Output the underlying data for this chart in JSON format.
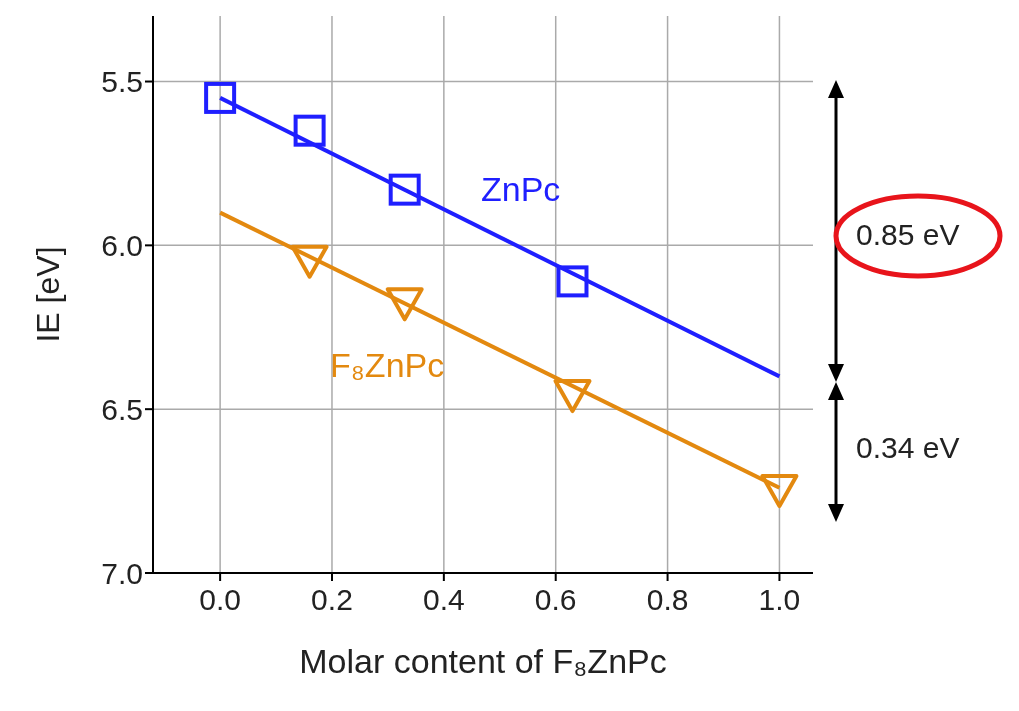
{
  "chart_data": {
    "type": "scatter",
    "xlabel": "Molar content of F₈ZnPc",
    "ylabel": "IE [eV]",
    "xlim": [
      -0.12,
      1.06
    ],
    "xticks": [
      {
        "value": 0,
        "label": "0.0"
      },
      0.2,
      0.4,
      0.6,
      0.8,
      {
        "value": 1,
        "label": "1.0"
      }
    ],
    "ylim": [
      7.0,
      5.3
    ],
    "yticks": [
      5.5,
      {
        "value": 6,
        "label": "6.0"
      },
      6.5,
      {
        "value": 7,
        "label": "7.0"
      }
    ],
    "grid": true,
    "series": [
      {
        "name": "ZnPc",
        "marker": "square",
        "color": "#1f1fff",
        "x": [
          0,
          0.16,
          0.33,
          0.63
        ],
        "values": [
          5.55,
          5.65,
          5.83,
          6.11
        ]
      },
      {
        "name": "F₈ZnPc",
        "marker": "triangle",
        "color": "#e3890f",
        "x": [
          0.16,
          0.33,
          0.63,
          1.0
        ],
        "values": [
          6.05,
          6.18,
          6.46,
          6.75
        ]
      },
      {
        "type": "line",
        "marker": "none",
        "color": "#1f1fff",
        "x": [
          0,
          1.0
        ],
        "values": [
          5.55,
          6.4
        ]
      },
      {
        "type": "line",
        "marker": "none",
        "color": "#e3890f",
        "x": [
          0,
          1.0
        ],
        "values": [
          5.9,
          6.74
        ]
      }
    ],
    "annotations": [
      "0.85 eV",
      "0.34 eV"
    ]
  }
}
